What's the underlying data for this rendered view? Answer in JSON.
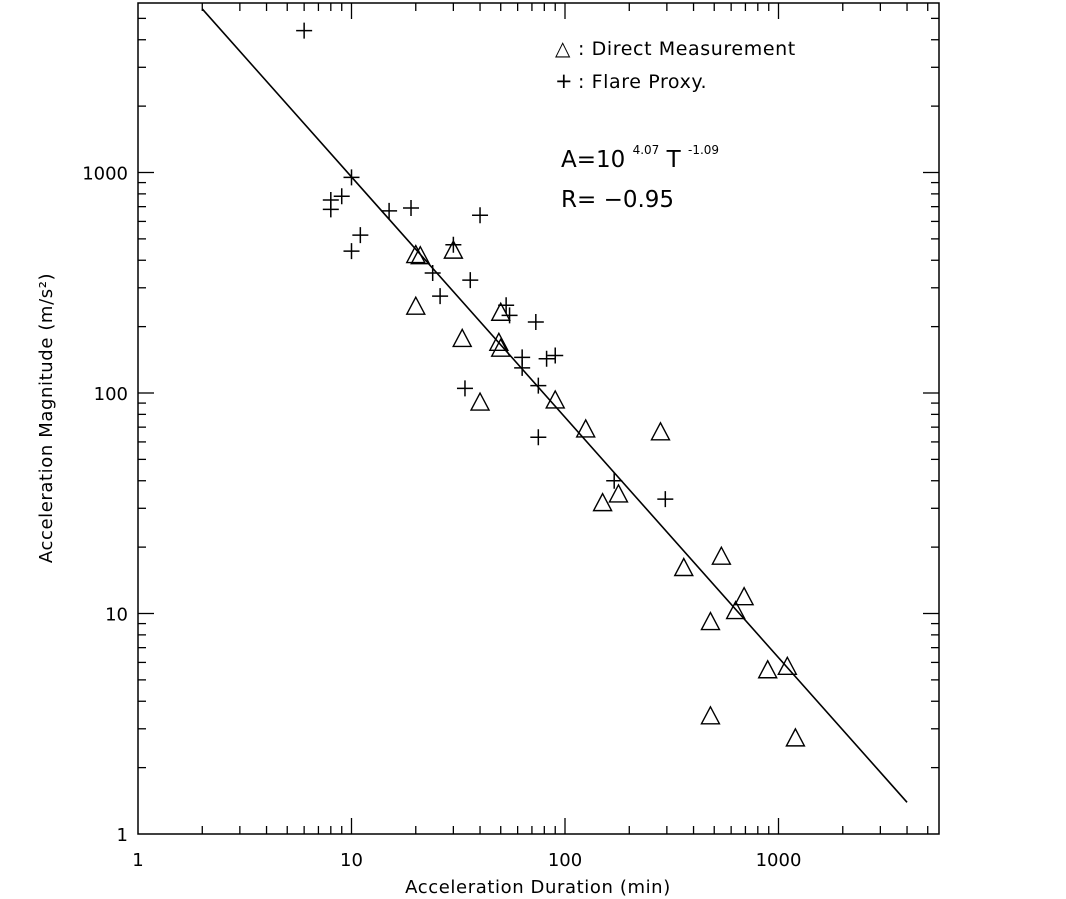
{
  "chart_data": {
    "type": "scatter",
    "xlabel": "Acceleration Duration (min)",
    "ylabel": "Acceleration Magnitude (m/s²)",
    "x_scale": "log",
    "y_scale": "log",
    "xlim": [
      1,
      6000
    ],
    "ylim": [
      1,
      6000
    ],
    "x_ticks": [
      1,
      10,
      100,
      1000
    ],
    "x_tick_labels": [
      "1",
      "10",
      "100",
      "1000"
    ],
    "y_ticks": [
      1,
      10,
      100,
      1000
    ],
    "y_tick_labels": [
      "1",
      "10",
      "100",
      "1000"
    ],
    "grid": false,
    "legend_position": "top-right",
    "legend": [
      {
        "symbol": "△",
        "label": ": Direct Measurement",
        "marker": "triangle"
      },
      {
        "symbol": "+",
        "label": ": Flare Proxy.",
        "marker": "plus"
      }
    ],
    "annotations": {
      "fit_base": "A=10",
      "fit_exp1": "4.07",
      "fit_mid": " T",
      "fit_exp2": "-1.09",
      "corr": "R= −0.95"
    },
    "fit": {
      "log10_intercept": 4.07,
      "slope": -1.09,
      "x_range": [
        2,
        4000
      ]
    },
    "series": [
      {
        "name": "Direct Measurement",
        "marker": "triangle",
        "points": [
          [
            20,
            420
          ],
          [
            21,
            415
          ],
          [
            30,
            440
          ],
          [
            20,
            245
          ],
          [
            33,
            175
          ],
          [
            50,
            230
          ],
          [
            49,
            168
          ],
          [
            50,
            158
          ],
          [
            40,
            90
          ],
          [
            90,
            92
          ],
          [
            125,
            68
          ],
          [
            280,
            66
          ],
          [
            150,
            31.5
          ],
          [
            178,
            34.5
          ],
          [
            360,
            16
          ],
          [
            540,
            18
          ],
          [
            480,
            9.1
          ],
          [
            630,
            10.2
          ],
          [
            690,
            11.8
          ],
          [
            890,
            5.5
          ],
          [
            1100,
            5.7
          ],
          [
            480,
            3.4
          ],
          [
            1200,
            2.7
          ]
        ]
      },
      {
        "name": "Flare Proxy.",
        "marker": "plus",
        "points": [
          [
            6,
            4400
          ],
          [
            10,
            950
          ],
          [
            8,
            750
          ],
          [
            9,
            780
          ],
          [
            8,
            680
          ],
          [
            15,
            670
          ],
          [
            19,
            690
          ],
          [
            11,
            520
          ],
          [
            10,
            440
          ],
          [
            40,
            640
          ],
          [
            30,
            470
          ],
          [
            24,
            350
          ],
          [
            36,
            325
          ],
          [
            26,
            275
          ],
          [
            53,
            250
          ],
          [
            55,
            225
          ],
          [
            73,
            210
          ],
          [
            63,
            145
          ],
          [
            63,
            130
          ],
          [
            82,
            143
          ],
          [
            90,
            148
          ],
          [
            75,
            108
          ],
          [
            34,
            105
          ],
          [
            75,
            63
          ],
          [
            170,
            40
          ],
          [
            295,
            33
          ]
        ]
      }
    ]
  }
}
